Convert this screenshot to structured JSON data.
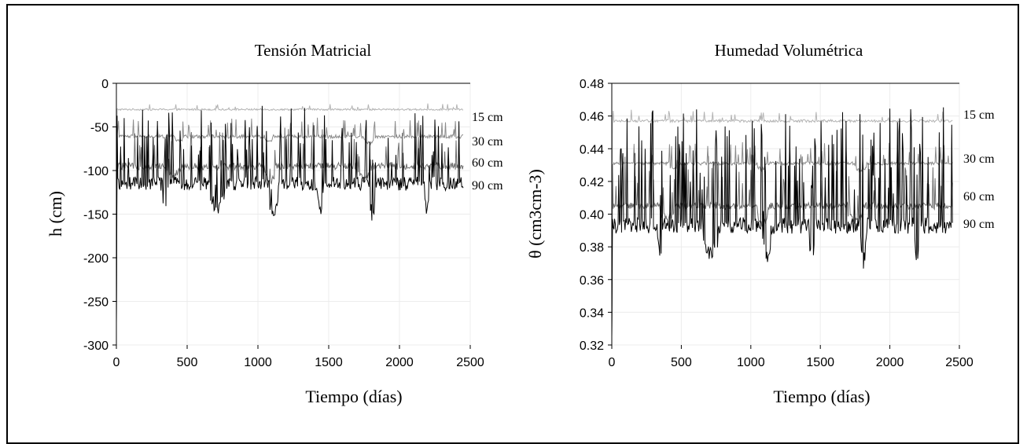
{
  "chart_data": [
    {
      "type": "line",
      "title": "Tensión Matricial",
      "xlabel": "Tiempo (días)",
      "ylabel": "h (cm)",
      "xlim": [
        0,
        2500
      ],
      "ylim": [
        -300,
        0
      ],
      "xticks": [
        0,
        500,
        1000,
        1500,
        2000,
        2500
      ],
      "yticks": [
        0,
        -50,
        -100,
        -150,
        -200,
        -250,
        -300
      ],
      "grid": true,
      "series": [
        {
          "name": "90 cm",
          "color": "#b4b4b4",
          "base": -30,
          "amp": 1,
          "spikes": [
            8,
            0.05
          ],
          "dips": [],
          "x": [
            0,
            2450
          ],
          "values": [
            -30,
            -30
          ]
        },
        {
          "name": "60 cm",
          "color": "#8c8c8c",
          "base": -61,
          "amp": 2,
          "spikes": [
            22,
            0.1
          ],
          "dips": [
            [
              420,
              470,
              -6
            ],
            [
              1050,
              1100,
              -6
            ],
            [
              1750,
              1830,
              -8
            ]
          ],
          "x": [
            0,
            2450
          ],
          "values": [
            -61,
            -61
          ]
        },
        {
          "name": "30 cm",
          "color": "#6e6e6e",
          "base": -95,
          "amp": 4,
          "spikes": [
            45,
            0.12
          ],
          "dips": [
            [
              350,
              450,
              -10
            ],
            [
              1050,
              1120,
              -20
            ],
            [
              1700,
              1800,
              -15
            ]
          ],
          "x": [
            0,
            2450
          ],
          "values": [
            -95,
            -95
          ]
        },
        {
          "name": "15 cm",
          "color": "#000000",
          "base": -115,
          "amp": 8,
          "spikes": [
            85,
            0.22
          ],
          "dips": [
            [
              330,
              360,
              -35
            ],
            [
              660,
              760,
              -30
            ],
            [
              1080,
              1140,
              -40
            ],
            [
              1420,
              1460,
              -33
            ],
            [
              1790,
              1830,
              -40
            ],
            [
              2180,
              2210,
              -35
            ]
          ],
          "x": [
            0,
            2450
          ],
          "values": [
            -115,
            -115
          ]
        }
      ]
    },
    {
      "type": "line",
      "title": "Humedad Volumétrica",
      "xlabel": "Tiempo (días)",
      "ylabel": "θ (cm3cm-3)",
      "xlim": [
        0,
        2500
      ],
      "ylim": [
        0.32,
        0.48
      ],
      "xticks": [
        0,
        500,
        1000,
        1500,
        2000,
        2500
      ],
      "yticks": [
        0.48,
        0.46,
        0.44,
        0.42,
        0.4,
        0.38,
        0.36,
        0.34,
        0.32
      ],
      "grid": true,
      "series": [
        {
          "name": "90 cm",
          "color": "#b4b4b4",
          "base": 0.457,
          "amp": 0.0008,
          "spikes": [
            0.007,
            0.05
          ],
          "dips": [],
          "x": [
            0,
            2450
          ],
          "values": [
            0.457,
            0.457
          ]
        },
        {
          "name": "60 cm",
          "color": "#8c8c8c",
          "base": 0.431,
          "amp": 0.001,
          "spikes": [
            0.013,
            0.1
          ],
          "dips": [
            [
              420,
              470,
              -0.004
            ],
            [
              1050,
              1100,
              -0.004
            ],
            [
              1750,
              1830,
              -0.005
            ]
          ],
          "x": [
            0,
            2450
          ],
          "values": [
            0.431,
            0.431
          ]
        },
        {
          "name": "30 cm",
          "color": "#6e6e6e",
          "base": 0.405,
          "amp": 0.002,
          "spikes": [
            0.03,
            0.12
          ],
          "dips": [
            [
              350,
              450,
              -0.008
            ],
            [
              1050,
              1120,
              -0.012
            ],
            [
              1700,
              1800,
              -0.01
            ]
          ],
          "x": [
            0,
            2450
          ],
          "values": [
            0.405,
            0.405
          ]
        },
        {
          "name": "15 cm",
          "color": "#000000",
          "base": 0.393,
          "amp": 0.005,
          "spikes": [
            0.07,
            0.22
          ],
          "dips": [
            [
              330,
              360,
              -0.02
            ],
            [
              660,
              760,
              -0.018
            ],
            [
              1080,
              1140,
              -0.022
            ],
            [
              1420,
              1460,
              -0.019
            ],
            [
              1790,
              1830,
              -0.022
            ],
            [
              2180,
              2210,
              -0.02
            ]
          ],
          "x": [
            0,
            2450
          ],
          "values": [
            0.393,
            0.393
          ]
        }
      ]
    }
  ]
}
